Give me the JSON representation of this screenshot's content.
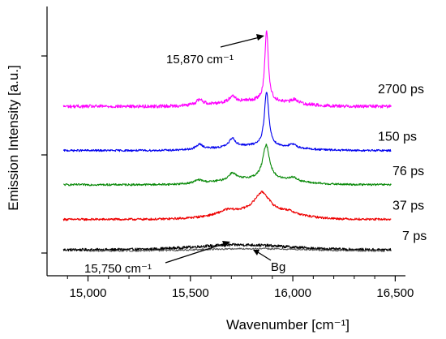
{
  "chart_data": {
    "type": "line",
    "xlabel": "Wavenumber [cm⁻¹]",
    "ylabel": "Emission Intensity [a.u.]",
    "xlim": [
      14800,
      16550
    ],
    "x_ticks": [
      15000,
      15500,
      16000,
      16500
    ],
    "x_tick_labels": [
      "15,000",
      "15,500",
      "16,000",
      "16,500"
    ],
    "y_ticks_count": 3,
    "grid": false,
    "legend": "none",
    "series": [
      {
        "name": "7 ps",
        "color": "#000000",
        "offset": 0.0,
        "peak_x": 15750,
        "peak_height": 0.09,
        "peak_width": 160,
        "sharp_height": 0.0,
        "side_peaks": [],
        "noise": 0.025
      },
      {
        "name": "37 ps",
        "color": "#ee0000",
        "offset": 0.55,
        "peak_x": 15850,
        "peak_height": 0.36,
        "peak_width": 45,
        "sharp_height": 0.0,
        "broad_height": 0.13,
        "side_peaks": [
          [
            15680,
            0.07,
            45
          ],
          [
            15980,
            0.05,
            40
          ]
        ],
        "noise": 0.02
      },
      {
        "name": "76 ps",
        "color": "#0a8a0a",
        "offset": 1.18,
        "peak_x": 15870,
        "peak_height": 0.62,
        "peak_width": 20,
        "sharp_height": 0.0,
        "broad_height": 0.1,
        "side_peaks": [
          [
            15705,
            0.13,
            22
          ],
          [
            15540,
            0.06,
            25
          ],
          [
            16000,
            0.07,
            28
          ]
        ],
        "noise": 0.018
      },
      {
        "name": "150 ps",
        "color": "#0000ee",
        "offset": 1.8,
        "peak_x": 15872,
        "peak_height": 0.98,
        "peak_width": 13,
        "sharp_height": 0.0,
        "broad_height": 0.08,
        "side_peaks": [
          [
            15705,
            0.16,
            18
          ],
          [
            15545,
            0.09,
            20
          ],
          [
            16000,
            0.06,
            22
          ]
        ],
        "noise": 0.018
      },
      {
        "name": "2700 ps",
        "color": "#ff00ff",
        "offset": 2.6,
        "peak_x": 15872,
        "peak_height": 1.3,
        "peak_width": 10,
        "sharp_height": 0.0,
        "broad_height": 0.1,
        "side_peaks": [
          [
            15705,
            0.12,
            16
          ],
          [
            15545,
            0.1,
            20
          ],
          [
            16010,
            0.07,
            20
          ]
        ],
        "noise": 0.03
      }
    ],
    "annotations": [
      {
        "text": "15,870 cm⁻¹",
        "x": 15870
      },
      {
        "text": "15,750 cm⁻¹",
        "x": 15750
      },
      {
        "text": "Bg",
        "x": 15840
      }
    ]
  }
}
